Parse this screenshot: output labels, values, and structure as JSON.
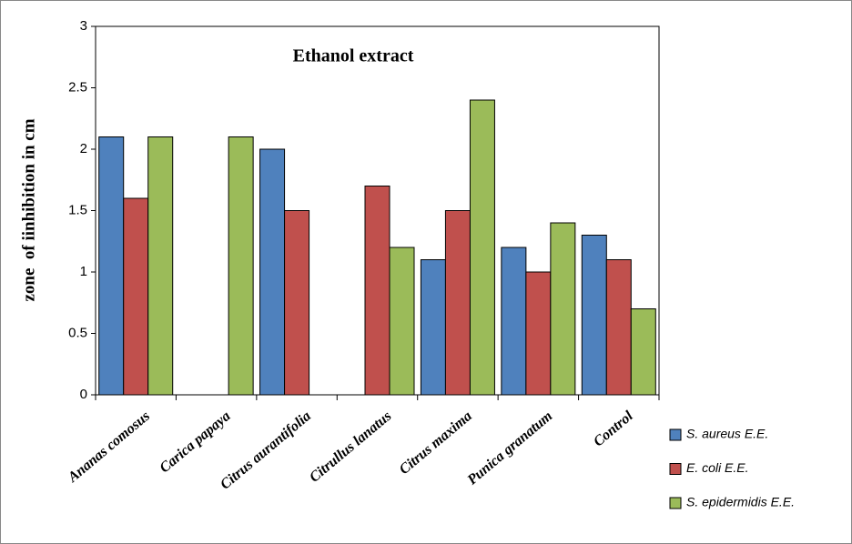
{
  "chart_data": {
    "type": "bar",
    "title": "Ethanol extract",
    "y_label": "zone  of iinhibition in cm",
    "categories": [
      "Ananas comosus",
      "Carica papaya",
      "Citrus aurantifolia",
      "Citrullus lanatus",
      "Citrus maxima",
      "Punica granatum",
      "Control"
    ],
    "series": [
      {
        "name": "S. aureus E.E.",
        "color": "#4f81bd",
        "values": [
          2.1,
          0,
          2.0,
          0,
          1.1,
          1.2,
          1.3
        ]
      },
      {
        "name": "E. coli E.E.",
        "color": "#c0504d",
        "values": [
          1.6,
          0,
          1.5,
          1.7,
          1.5,
          1.0,
          1.1
        ]
      },
      {
        "name": "S. epidermidis E.E.",
        "color": "#9bbb59",
        "values": [
          2.1,
          2.1,
          0,
          1.2,
          2.4,
          1.4,
          0.7
        ]
      }
    ],
    "ylim": [
      0,
      3
    ],
    "yticks": [
      0,
      0.5,
      1,
      1.5,
      2,
      2.5,
      3
    ],
    "grid": false,
    "legend": "right"
  }
}
